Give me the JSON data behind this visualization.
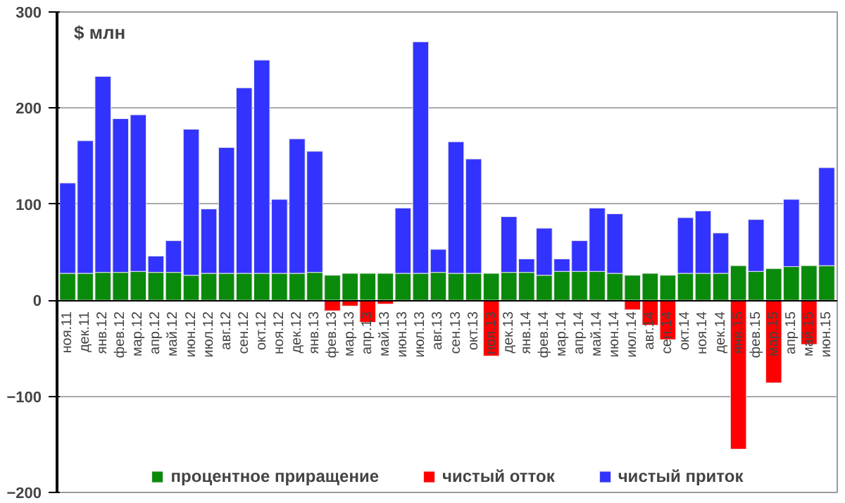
{
  "chart_data": {
    "type": "bar",
    "stacked": true,
    "ylabel": "$ млн",
    "categories": [
      "ноя.11",
      "дек.11",
      "янв.12",
      "фев.12",
      "мар.12",
      "апр.12",
      "май.12",
      "июн.12",
      "июл.12",
      "авг.12",
      "сен.12",
      "окт.12",
      "ноя.12",
      "дек.12",
      "янв.13",
      "фев.13",
      "мар.13",
      "апр.13",
      "май.13",
      "июн.13",
      "июл.13",
      "авг.13",
      "сен.13",
      "окт.13",
      "ноя.13",
      "дек.13",
      "янв.14",
      "фев.14",
      "мар.14",
      "апр.14",
      "май.14",
      "июн.14",
      "июл.14",
      "авг.14",
      "сен.14",
      "окт.14",
      "ноя.14",
      "дек.14",
      "янв.15",
      "фев.15",
      "мар.15",
      "апр.15",
      "май.15",
      "июн.15"
    ],
    "series": [
      {
        "name": "процентное приращение",
        "color": "#0a8a0a",
        "values": [
          28,
          28,
          29,
          29,
          30,
          29,
          29,
          26,
          28,
          28,
          28,
          28,
          28,
          28,
          29,
          26,
          28,
          28,
          28,
          28,
          28,
          29,
          28,
          28,
          28,
          29,
          29,
          26,
          30,
          30,
          30,
          28,
          26,
          28,
          26,
          28,
          28,
          28,
          36,
          30,
          33,
          35,
          36,
          36
        ]
      },
      {
        "name": "чистый отток",
        "color": "#ff0000",
        "values": [
          null,
          null,
          null,
          null,
          null,
          null,
          null,
          null,
          null,
          null,
          null,
          null,
          null,
          null,
          null,
          -11,
          -6,
          -23,
          -4,
          null,
          null,
          null,
          null,
          null,
          -58,
          null,
          null,
          null,
          null,
          null,
          null,
          null,
          -10,
          -26,
          -41,
          null,
          null,
          null,
          -155,
          null,
          -86,
          null,
          -46,
          null
        ]
      },
      {
        "name": "чистый приток",
        "color": "#3333ff",
        "values": [
          94,
          138,
          204,
          160,
          163,
          17,
          33,
          152,
          67,
          131,
          193,
          222,
          77,
          140,
          126,
          null,
          null,
          null,
          null,
          68,
          241,
          24,
          137,
          119,
          null,
          58,
          14,
          49,
          13,
          32,
          66,
          62,
          null,
          null,
          null,
          58,
          65,
          42,
          null,
          54,
          null,
          70,
          null,
          102
        ]
      }
    ],
    "ylim": [
      -200,
      300
    ],
    "yticks": [
      -200,
      -100,
      0,
      100,
      200,
      300
    ],
    "grid": "y",
    "legend": "bottom"
  }
}
